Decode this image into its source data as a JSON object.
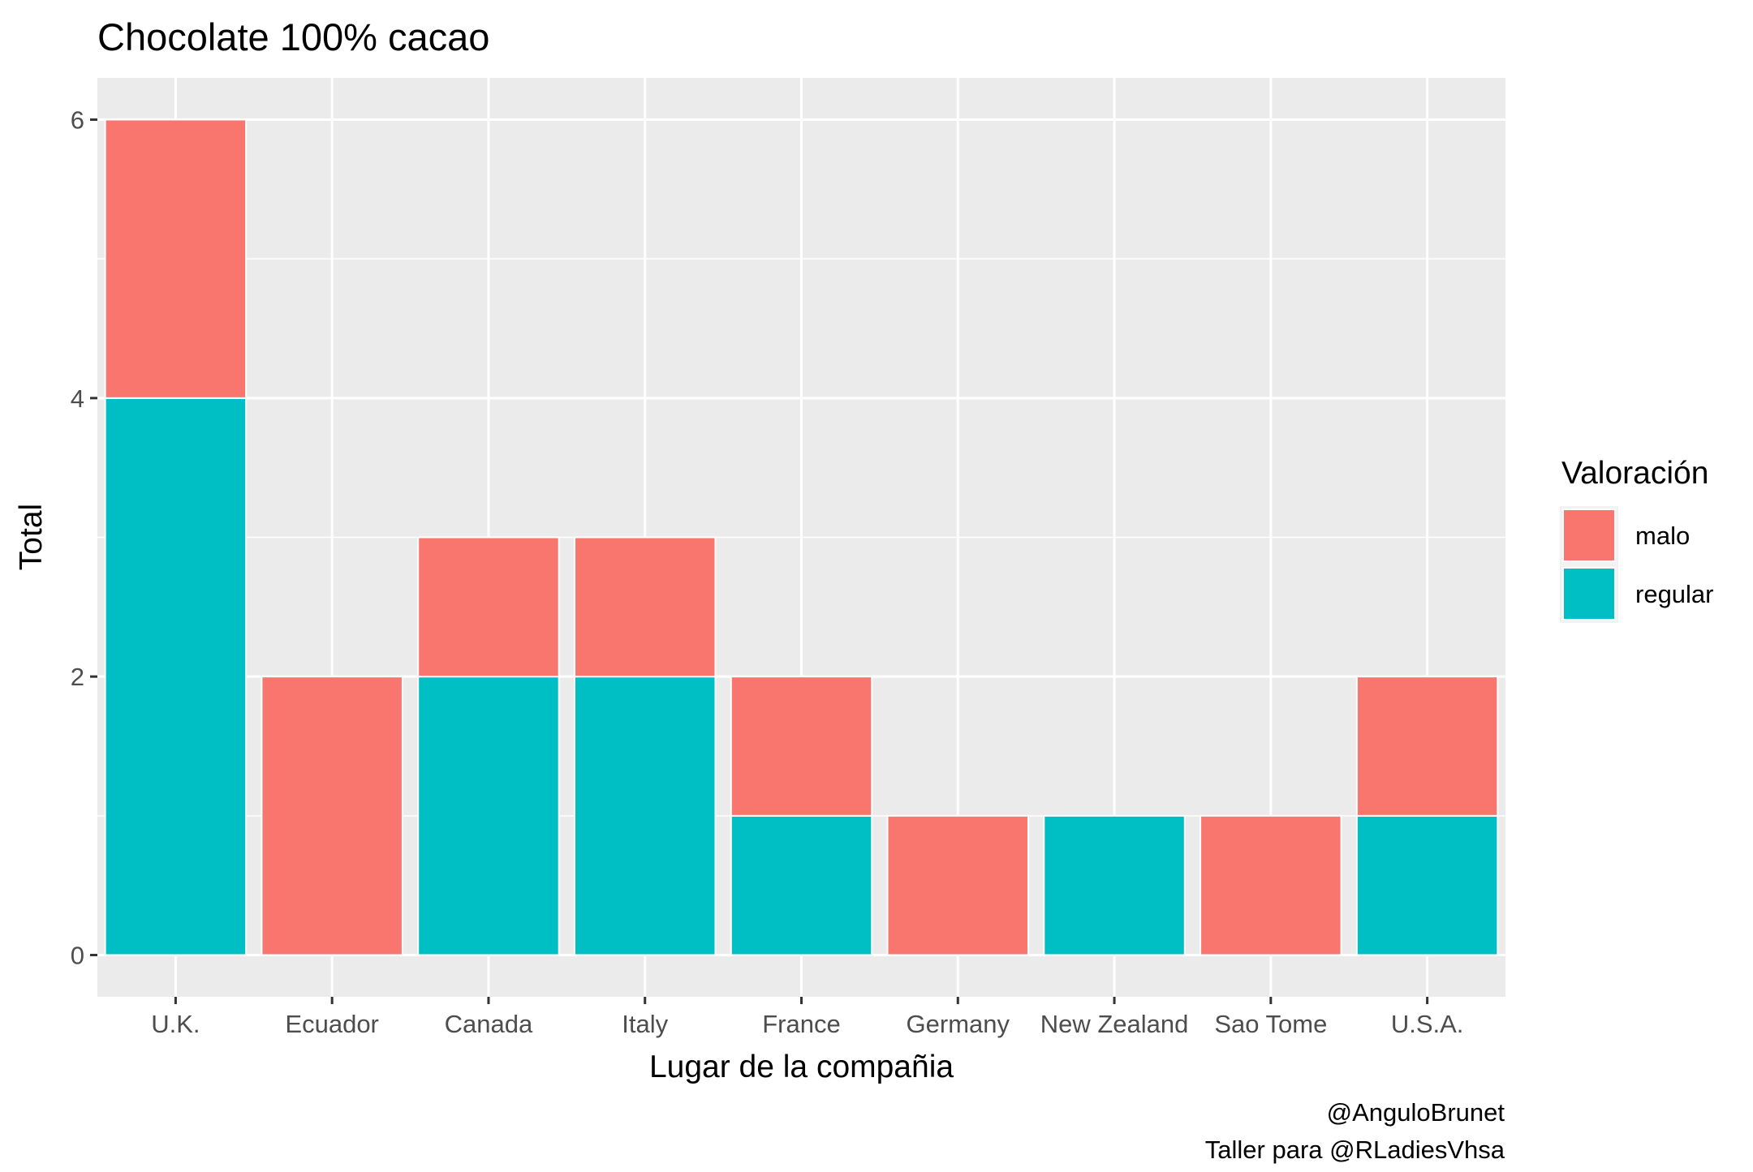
{
  "chart_data": {
    "type": "bar",
    "stacked": true,
    "title": "Chocolate 100% cacao",
    "xlabel": "Lugar de la compañia",
    "ylabel": "Total",
    "categories": [
      "U.K.",
      "Ecuador",
      "Canada",
      "Italy",
      "France",
      "Germany",
      "New Zealand",
      "Sao Tome",
      "U.S.A."
    ],
    "series": [
      {
        "name": "malo",
        "color": "#F8766D",
        "values": [
          2,
          2,
          1,
          1,
          1,
          1,
          0,
          1,
          1
        ]
      },
      {
        "name": "regular",
        "color": "#00BFC4",
        "values": [
          4,
          0,
          2,
          2,
          1,
          0,
          1,
          0,
          1
        ]
      }
    ],
    "ylim": [
      -0.3,
      6.3
    ],
    "yticks": [
      0,
      2,
      4,
      6
    ],
    "grid": true,
    "legend": {
      "title": "Valoración",
      "position": "right"
    },
    "caption": [
      "@AnguloBrunet",
      "Taller para @RLadiesVhsa"
    ],
    "colors": {
      "panel_background": "#EBEBEB",
      "grid": "#FFFFFF"
    }
  }
}
